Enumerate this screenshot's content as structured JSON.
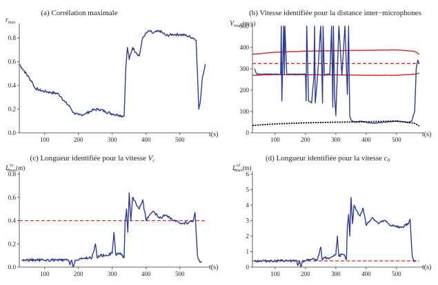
{
  "colors": {
    "series": "#2b3a9a",
    "reference": "#e0221b",
    "secondary": "#111111",
    "axis": "#333333"
  },
  "chart_data": [
    {
      "panel": "a",
      "type": "line",
      "title": "(a) Corrélation maximale",
      "ylabel_main": "r",
      "ylabel_sub": "max",
      "xlabel": "t(s)",
      "xlim": [
        25,
        580
      ],
      "ylim": [
        0,
        0.9
      ],
      "xticks": [
        100,
        200,
        300,
        400,
        500
      ],
      "yticks": [
        0.0,
        0.2,
        0.4,
        0.6,
        0.8
      ],
      "ytick_labels": [
        "0.0",
        "0.2",
        "0.4",
        "0.6",
        "0.8"
      ],
      "series": [
        {
          "role": "measured",
          "color": "#2b3a9a",
          "noise": 0.012,
          "x": [
            25,
            32,
            40,
            55,
            65,
            70,
            85,
            100,
            120,
            140,
            150,
            160,
            175,
            185,
            200,
            220,
            240,
            260,
            280,
            300,
            320,
            335,
            340,
            345,
            350,
            360,
            370,
            380,
            390,
            400,
            410,
            420,
            440,
            460,
            480,
            500,
            520,
            540,
            548,
            552,
            556,
            560,
            566,
            575
          ],
          "y": [
            0.58,
            0.55,
            0.52,
            0.46,
            0.42,
            0.38,
            0.36,
            0.35,
            0.34,
            0.33,
            0.3,
            0.26,
            0.22,
            0.17,
            0.15,
            0.16,
            0.19,
            0.2,
            0.18,
            0.16,
            0.15,
            0.14,
            0.55,
            0.72,
            0.62,
            0.72,
            0.68,
            0.65,
            0.8,
            0.84,
            0.86,
            0.84,
            0.86,
            0.82,
            0.83,
            0.83,
            0.82,
            0.8,
            0.78,
            0.5,
            0.2,
            0.25,
            0.45,
            0.58
          ]
        }
      ]
    },
    {
      "panel": "b",
      "type": "line",
      "title": "(b) Vitesse identifiée pour la distance inter−microphones",
      "ylabel_main": "V",
      "ylabel_sub": "rmax",
      "ylabel_unit": "(m/s)",
      "xlabel": "t(s)",
      "xlim": [
        25,
        580
      ],
      "ylim": [
        0,
        500
      ],
      "xticks": [
        100,
        200,
        300,
        400,
        500
      ],
      "yticks": [
        0,
        100,
        200,
        300,
        400,
        500
      ],
      "ytick_labels": [
        "0",
        "100",
        "200",
        "300",
        "400",
        "500"
      ],
      "series": [
        {
          "role": "upper-bound",
          "color": "#e0221b",
          "noise": 0.8,
          "x": [
            25,
            100,
            200,
            300,
            400,
            500,
            560,
            575
          ],
          "y": [
            368,
            378,
            383,
            385,
            387,
            389,
            382,
            368
          ]
        },
        {
          "role": "reference",
          "color": "#e0221b",
          "dashed": true,
          "x": [
            25,
            575
          ],
          "y": [
            325,
            325
          ]
        },
        {
          "role": "lower-bound",
          "color": "#e0221b",
          "noise": 0.8,
          "x": [
            25,
            100,
            200,
            300,
            400,
            500,
            560,
            575
          ],
          "y": [
            270,
            273,
            272,
            272,
            270,
            270,
            275,
            280
          ]
        },
        {
          "role": "identified-velocity",
          "color": "#2b3a9a",
          "noise": 1.5,
          "x": [
            32,
            36,
            40,
            60,
            80,
            100,
            118,
            120,
            122,
            128,
            130,
            132,
            138,
            150,
            160,
            180,
            200,
            202,
            204,
            210,
            220,
            228,
            230,
            232,
            236,
            240,
            250,
            254,
            256,
            258,
            262,
            270,
            280,
            286,
            290,
            292,
            296,
            300,
            310,
            320,
            330,
            338,
            342,
            346,
            350,
            360,
            380,
            400,
            420,
            460,
            500,
            540,
            550,
            560,
            565,
            570,
            575
          ],
          "y": [
            300,
            285,
            275,
            275,
            276,
            275,
            275,
            500,
            150,
            500,
            275,
            500,
            275,
            275,
            275,
            275,
            275,
            150,
            500,
            150,
            140,
            270,
            500,
            140,
            200,
            270,
            500,
            270,
            140,
            500,
            270,
            275,
            275,
            500,
            120,
            500,
            170,
            80,
            500,
            270,
            500,
            180,
            500,
            80,
            60,
            50,
            55,
            50,
            45,
            50,
            55,
            50,
            55,
            100,
            300,
            340,
            325
          ]
        },
        {
          "role": "sound-speed-reference",
          "color": "#111111",
          "dotted": true,
          "x": [
            25,
            100,
            200,
            300,
            400,
            500,
            560,
            575
          ],
          "y": [
            35,
            42,
            47,
            50,
            52,
            55,
            45,
            32
          ]
        }
      ]
    },
    {
      "panel": "c",
      "type": "line",
      "title_prefix": "(c) Longueur identifiée pour la vitesse ",
      "title_symbol": "V",
      "title_symbol_sub": "c",
      "ylabel_main": "L",
      "ylabel_sup": "Vc",
      "ylabel_sub": "rmax",
      "ylabel_unit": "(m)",
      "xlabel": "t(s)",
      "xlim": [
        25,
        580
      ],
      "ylim": [
        0,
        0.8
      ],
      "xticks": [
        100,
        200,
        300,
        400,
        500
      ],
      "yticks": [
        0.0,
        0.2,
        0.4,
        0.6,
        0.8
      ],
      "ytick_labels": [
        "0.0",
        "0.2",
        "0.4",
        "0.6",
        "0.8"
      ],
      "series": [
        {
          "role": "reference",
          "color": "#e0221b",
          "dashed": true,
          "x": [
            25,
            575
          ],
          "y": [
            0.4,
            0.4
          ]
        },
        {
          "role": "identified-length",
          "color": "#2b3a9a",
          "noise": 0.012,
          "x": [
            32,
            100,
            160,
            170,
            175,
            180,
            185,
            190,
            200,
            210,
            220,
            240,
            250,
            255,
            260,
            280,
            300,
            305,
            310,
            320,
            330,
            335,
            338,
            342,
            346,
            350,
            355,
            360,
            370,
            380,
            390,
            400,
            420,
            440,
            460,
            480,
            500,
            520,
            540,
            545,
            548,
            552,
            558,
            565
          ],
          "y": [
            0.06,
            0.06,
            0.06,
            0.06,
            0.02,
            0.06,
            0.0,
            0.06,
            0.06,
            0.07,
            0.08,
            0.08,
            0.2,
            0.08,
            0.1,
            0.1,
            0.12,
            0.3,
            0.11,
            0.12,
            0.1,
            0.08,
            0.4,
            0.5,
            0.3,
            0.64,
            0.4,
            0.6,
            0.55,
            0.5,
            0.58,
            0.4,
            0.48,
            0.42,
            0.45,
            0.4,
            0.38,
            0.38,
            0.4,
            0.47,
            0.3,
            0.1,
            0.05,
            0.05
          ]
        }
      ]
    },
    {
      "panel": "d",
      "type": "line",
      "title_prefix": "(d) Longueur identifiée pour la vitesse ",
      "title_symbol": "c",
      "title_symbol_sub": "0",
      "ylabel_main": "L",
      "ylabel_sup": "c0",
      "ylabel_sub": "rmax",
      "ylabel_unit": "(m)",
      "xlabel": "t(s)",
      "xlim": [
        25,
        580
      ],
      "ylim": [
        0,
        6
      ],
      "xticks": [
        100,
        200,
        300,
        400,
        500
      ],
      "yticks": [
        0,
        1,
        2,
        3,
        4,
        5,
        6
      ],
      "ytick_labels": [
        "0",
        "1",
        "2",
        "3",
        "4",
        "5",
        "6"
      ],
      "series": [
        {
          "role": "reference",
          "color": "#e0221b",
          "dashed": true,
          "x": [
            25,
            575
          ],
          "y": [
            0.4,
            0.4
          ]
        },
        {
          "role": "identified-length",
          "color": "#2b3a9a",
          "noise": 0.08,
          "x": [
            32,
            100,
            160,
            170,
            175,
            180,
            185,
            190,
            200,
            210,
            220,
            240,
            250,
            255,
            260,
            280,
            300,
            305,
            310,
            320,
            330,
            335,
            338,
            342,
            346,
            350,
            355,
            360,
            370,
            380,
            390,
            400,
            420,
            440,
            460,
            480,
            500,
            520,
            540,
            545,
            548,
            552,
            558,
            565
          ],
          "y": [
            0.4,
            0.4,
            0.4,
            0.4,
            0.1,
            0.4,
            0.0,
            0.4,
            0.4,
            0.5,
            0.5,
            0.5,
            1.3,
            0.5,
            0.6,
            0.6,
            0.8,
            2.0,
            0.7,
            0.8,
            0.7,
            0.5,
            2.6,
            3.4,
            2.0,
            4.5,
            2.8,
            4.0,
            3.6,
            3.3,
            3.8,
            2.7,
            3.2,
            2.8,
            3.0,
            2.7,
            2.6,
            2.6,
            2.8,
            3.1,
            2.0,
            0.7,
            0.35,
            0.35
          ]
        }
      ]
    }
  ]
}
